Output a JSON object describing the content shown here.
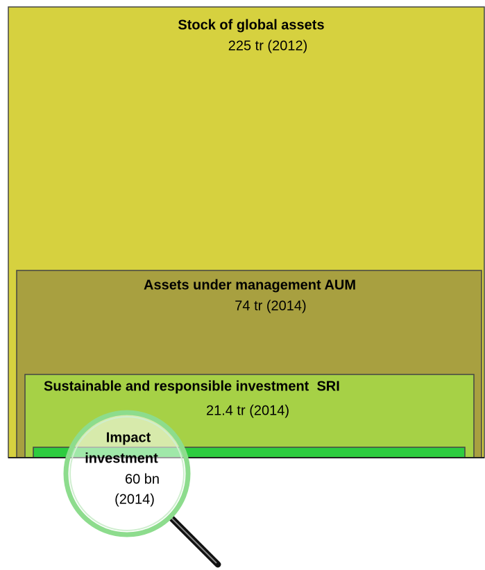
{
  "boxes": [
    {
      "title": "Stock of global assets",
      "value": "225 tr (2012)"
    },
    {
      "title": "Assets under management AUM",
      "value": "74 tr (2014)"
    },
    {
      "title": "Sustainable and responsible investment  SRI",
      "value": "21.4 tr (2014)"
    }
  ],
  "magnified": {
    "title_lines": [
      "Impact",
      "investment"
    ],
    "value_lines": [
      "60 bn",
      "(2014)"
    ]
  }
}
